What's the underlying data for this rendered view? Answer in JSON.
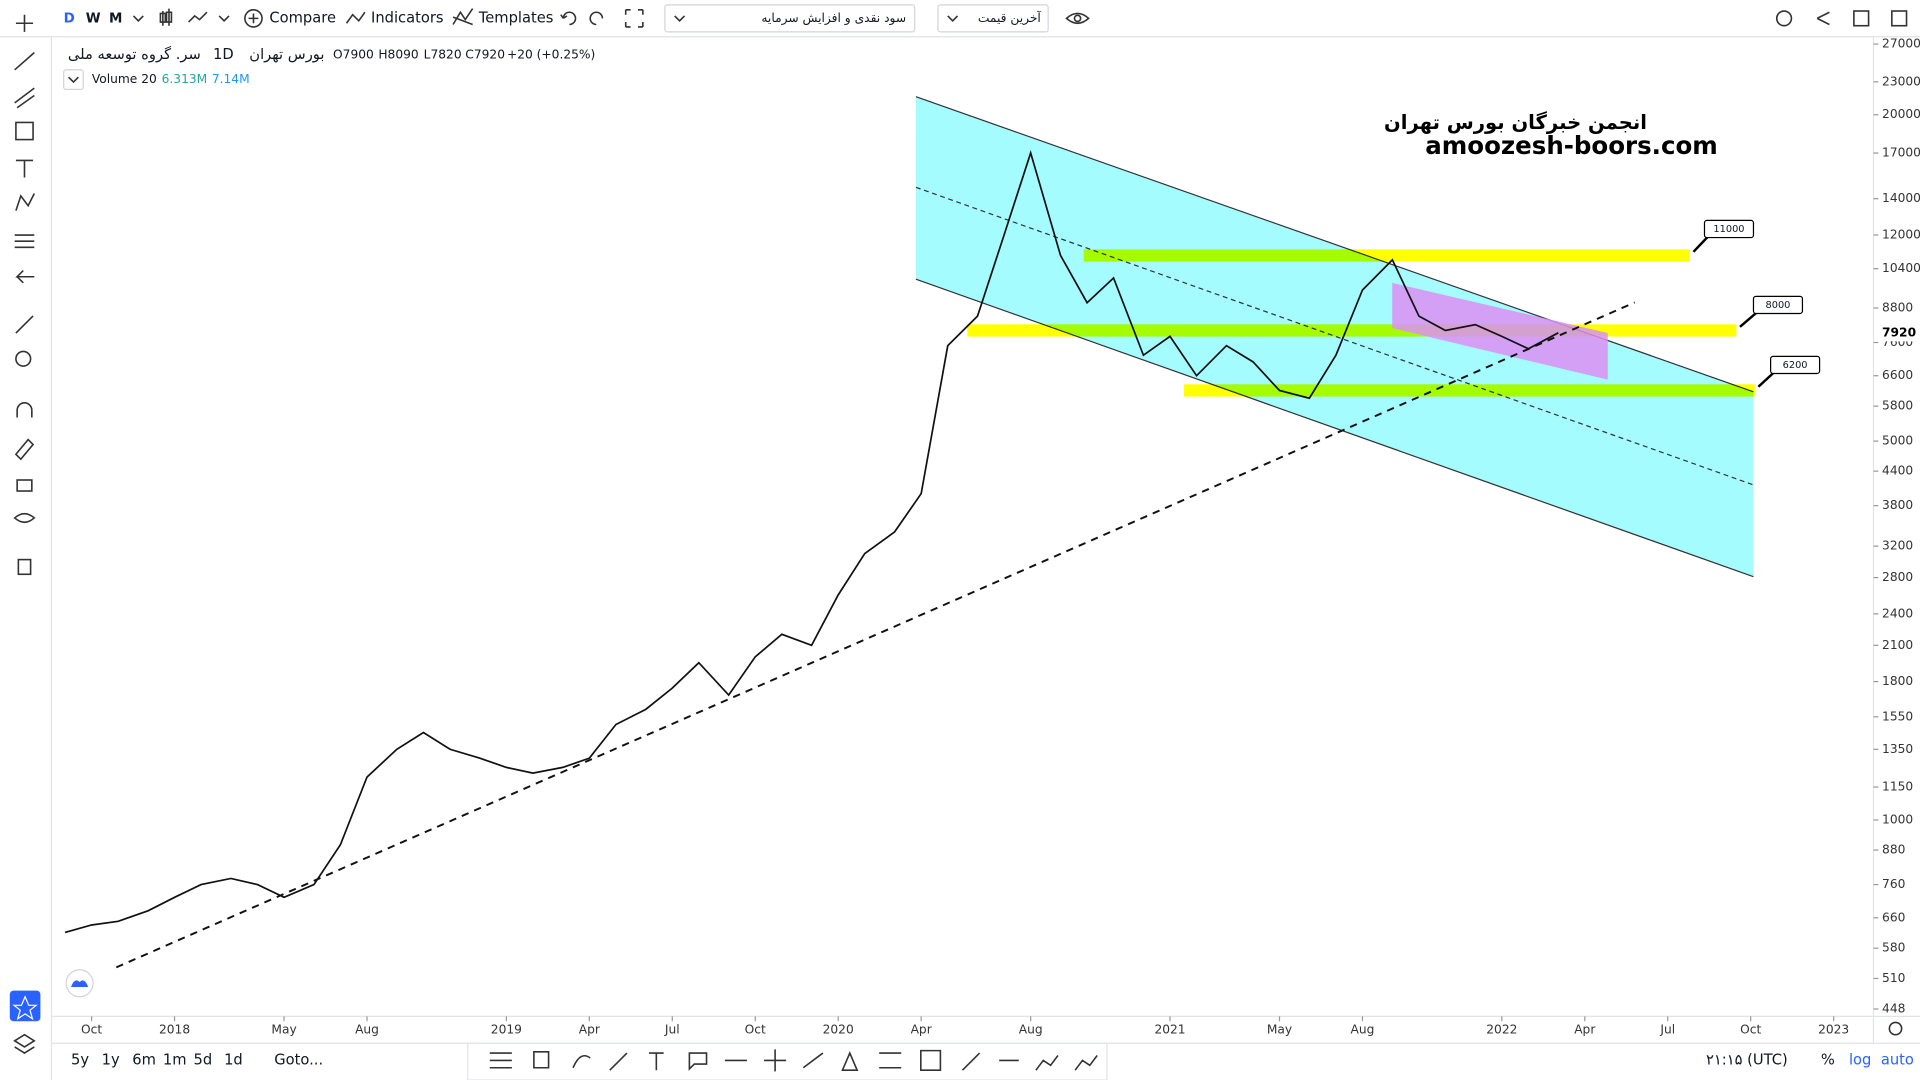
{
  "toolbar": {
    "intervals": [
      "D",
      "W",
      "M"
    ],
    "compare": "Compare",
    "indicators": "Indicators",
    "templates": "Templates",
    "dividend_dropdown": "سود نقدی و افزایش سرمایه",
    "price_dropdown": "آخرین قیمت"
  },
  "legend": {
    "symbol": "سر. گروه توسعه ملی",
    "interval": "1D",
    "exchange": "بورس تهران",
    "open": "O7900",
    "high": "H8090",
    "low": "L7820",
    "close": "C7920",
    "change": "+20 (+0.25%)",
    "volume_label": "Volume 20",
    "volume_value": "6.313M",
    "volume_ma": "7.14M"
  },
  "watermark": {
    "line1": "انجمن خبرگان بورس تهران",
    "line2": "amoozesh-boors.com"
  },
  "chart": {
    "type": "line",
    "price_scale": "log",
    "ylim": [
      448,
      27000
    ],
    "yticks": [
      27000,
      23000,
      20000,
      17000,
      14000,
      12000,
      10400,
      8800,
      7600,
      6600,
      5800,
      5000,
      4400,
      3800,
      3200,
      2800,
      2400,
      2100,
      1800,
      1550,
      1350,
      1150,
      1000,
      880,
      760,
      660,
      580,
      510,
      448
    ],
    "last_price": 7920,
    "xlim": [
      2017.64,
      2023.12
    ],
    "xticks": [
      {
        "value": 2017.75,
        "label": "Oct"
      },
      2018,
      {
        "value": 2018.33,
        "label": "May"
      },
      {
        "value": 2018.58,
        "label": "Aug"
      },
      2019,
      {
        "value": 2019.25,
        "label": "Apr"
      },
      {
        "value": 2019.5,
        "label": "Jul"
      },
      {
        "value": 2019.75,
        "label": "Oct"
      },
      2020,
      {
        "value": 2020.25,
        "label": "Apr"
      },
      {
        "value": 2020.58,
        "label": "Aug"
      },
      2021,
      {
        "value": 2021.33,
        "label": "May"
      },
      {
        "value": 2021.58,
        "label": "Aug"
      },
      2022,
      {
        "value": 2022.25,
        "label": "Apr"
      },
      {
        "value": 2022.5,
        "label": "Jul"
      },
      {
        "value": 2022.75,
        "label": "Oct"
      },
      2023
    ],
    "x": [
      2017.67,
      2017.75,
      2017.83,
      2017.92,
      2018.0,
      2018.08,
      2018.17,
      2018.25,
      2018.33,
      2018.42,
      2018.5,
      2018.58,
      2018.67,
      2018.75,
      2018.83,
      2018.92,
      2019.0,
      2019.08,
      2019.17,
      2019.25,
      2019.33,
      2019.42,
      2019.5,
      2019.58,
      2019.67,
      2019.75,
      2019.83,
      2019.92,
      2020.0,
      2020.08,
      2020.17,
      2020.25,
      2020.33,
      2020.42,
      2020.5,
      2020.58,
      2020.67,
      2020.75,
      2020.83,
      2020.92,
      2021.0,
      2021.08,
      2021.17,
      2021.25,
      2021.33,
      2021.42,
      2021.5,
      2021.58,
      2021.67,
      2021.75,
      2021.83,
      2021.92,
      2022.0,
      2022.08,
      2022.17
    ],
    "values": [
      620,
      640,
      650,
      680,
      720,
      760,
      780,
      760,
      720,
      760,
      900,
      1200,
      1350,
      1450,
      1350,
      1300,
      1250,
      1220,
      1250,
      1300,
      1500,
      1600,
      1750,
      1950,
      1700,
      2000,
      2200,
      2100,
      2600,
      3100,
      3400,
      4000,
      7500,
      8500,
      12000,
      17000,
      11000,
      9000,
      10000,
      7200,
      7800,
      6600,
      7500,
      7000,
      6200,
      6000,
      7200,
      9500,
      10800,
      8500,
      8000,
      8200,
      7800,
      7400,
      7920
    ],
    "levels": [
      11000,
      8000,
      6200
    ]
  },
  "bottom_bar": {
    "ranges": [
      "5y",
      "1y",
      "6m",
      "1m",
      "5d",
      "1d"
    ],
    "goto": "Goto...",
    "time": "۲۱:۱۵ (UTC)",
    "percent": "%",
    "log": "log",
    "auto": "auto"
  }
}
